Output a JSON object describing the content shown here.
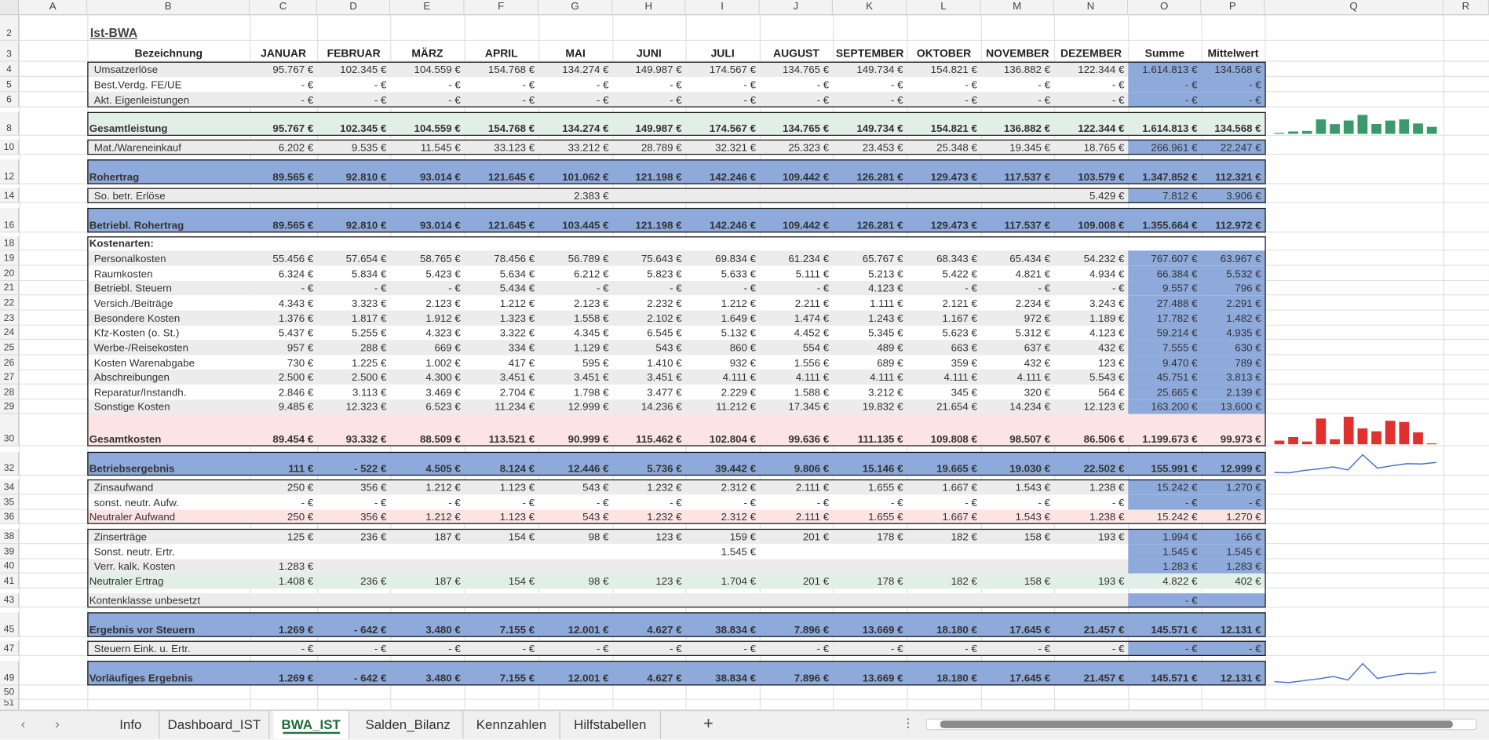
{
  "sheet": {
    "columns": [
      "A",
      "B",
      "C",
      "D",
      "E",
      "F",
      "G",
      "H",
      "I",
      "J",
      "K",
      "L",
      "M",
      "N",
      "O",
      "P",
      "Q",
      "R"
    ],
    "row_numbers": [
      "2",
      "3",
      "4",
      "5",
      "6",
      "8",
      "10",
      "12",
      "14",
      "16",
      "18",
      "19",
      "20",
      "21",
      "22",
      "23",
      "24",
      "25",
      "26",
      "27",
      "28",
      "29",
      "30",
      "32",
      "34",
      "35",
      "36",
      "38",
      "39",
      "40",
      "41",
      "43",
      "45",
      "47",
      "49",
      "50",
      "51"
    ],
    "title": "Ist-BWA",
    "header": [
      "Bezeichnung",
      "JANUAR",
      "FEBRUAR",
      "MÄRZ",
      "APRIL",
      "MAI",
      "JUNI",
      "JULI",
      "AUGUST",
      "SEPTEMBER",
      "OKTOBER",
      "NOVEMBER",
      "DEZEMBER",
      "Summe",
      "Mittelwert"
    ],
    "rows": [
      {
        "label": "Umsatzerlöse",
        "cells": [
          "95.767 €",
          "102.345 €",
          "104.559 €",
          "154.768 €",
          "134.274 €",
          "149.987 €",
          "174.567 €",
          "134.765 €",
          "149.734 €",
          "154.821 €",
          "136.882 €",
          "122.344 €",
          "1.614.813 €",
          "134.568 €"
        ]
      },
      {
        "label": "Best.Verdg. FE/UE",
        "cells": [
          "- €",
          "- €",
          "- €",
          "- €",
          "- €",
          "- €",
          "- €",
          "- €",
          "- €",
          "- €",
          "- €",
          "- €",
          "- €",
          "- €"
        ]
      },
      {
        "label": "Akt. Eigenleistungen",
        "cells": [
          "- €",
          "- €",
          "- €",
          "- €",
          "- €",
          "- €",
          "- €",
          "- €",
          "- €",
          "- €",
          "- €",
          "- €",
          "- €",
          "- €"
        ]
      },
      {
        "label": "Gesamtleistung",
        "cells": [
          "95.767 €",
          "102.345 €",
          "104.559 €",
          "154.768 €",
          "134.274 €",
          "149.987 €",
          "174.567 €",
          "134.765 €",
          "149.734 €",
          "154.821 €",
          "136.882 €",
          "122.344 €",
          "1.614.813 €",
          "134.568 €"
        ]
      },
      {
        "label": "Mat./Wareneinkauf",
        "cells": [
          "6.202 €",
          "9.535 €",
          "11.545 €",
          "33.123 €",
          "33.212 €",
          "28.789 €",
          "32.321 €",
          "25.323 €",
          "23.453 €",
          "25.348 €",
          "19.345 €",
          "18.765 €",
          "266.961 €",
          "22.247 €"
        ]
      },
      {
        "label": "Rohertrag",
        "cells": [
          "89.565 €",
          "92.810 €",
          "93.014 €",
          "121.645 €",
          "101.062 €",
          "121.198 €",
          "142.246 €",
          "109.442 €",
          "126.281 €",
          "129.473 €",
          "117.537 €",
          "103.579 €",
          "1.347.852 €",
          "112.321 €"
        ]
      },
      {
        "label": "So. betr. Erlöse",
        "cells": [
          null,
          null,
          null,
          null,
          "2.383 €",
          null,
          null,
          null,
          null,
          null,
          null,
          "5.429 €",
          "7.812 €",
          "3.906 €"
        ]
      },
      {
        "label": "Betriebl. Rohertrag",
        "cells": [
          "89.565 €",
          "92.810 €",
          "93.014 €",
          "121.645 €",
          "103.445 €",
          "121.198 €",
          "142.246 €",
          "109.442 €",
          "126.281 €",
          "129.473 €",
          "117.537 €",
          "109.008 €",
          "1.355.664 €",
          "112.972 €"
        ]
      },
      {
        "label": "Kostenarten:",
        "cells": [
          null,
          null,
          null,
          null,
          null,
          null,
          null,
          null,
          null,
          null,
          null,
          null,
          null,
          null
        ]
      },
      {
        "label": "Personalkosten",
        "cells": [
          "55.456 €",
          "57.654 €",
          "58.765 €",
          "78.456 €",
          "56.789 €",
          "75.643 €",
          "69.834 €",
          "61.234 €",
          "65.767 €",
          "68.343 €",
          "65.434 €",
          "54.232 €",
          "767.607 €",
          "63.967 €"
        ]
      },
      {
        "label": "Raumkosten",
        "cells": [
          "6.324 €",
          "5.834 €",
          "5.423 €",
          "5.634 €",
          "6.212 €",
          "5.823 €",
          "5.633 €",
          "5.111 €",
          "5.213 €",
          "5.422 €",
          "4.821 €",
          "4.934 €",
          "66.384 €",
          "5.532 €"
        ]
      },
      {
        "label": "Betriebl. Steuern",
        "cells": [
          "- €",
          "- €",
          "- €",
          "5.434 €",
          "- €",
          "- €",
          "- €",
          "- €",
          "4.123 €",
          "- €",
          "- €",
          "- €",
          "9.557 €",
          "796 €"
        ]
      },
      {
        "label": "Versich./Beiträge",
        "cells": [
          "4.343 €",
          "3.323 €",
          "2.123 €",
          "1.212 €",
          "2.123 €",
          "2.232 €",
          "1.212 €",
          "2.211 €",
          "1.111 €",
          "2.121 €",
          "2.234 €",
          "3.243 €",
          "27.488 €",
          "2.291 €"
        ]
      },
      {
        "label": "Besondere Kosten",
        "cells": [
          "1.376 €",
          "1.817 €",
          "1.912 €",
          "1.323 €",
          "1.558 €",
          "2.102 €",
          "1.649 €",
          "1.474 €",
          "1.243 €",
          "1.167 €",
          "972 €",
          "1.189 €",
          "17.782 €",
          "1.482 €"
        ]
      },
      {
        "label": "Kfz-Kosten (o. St.)",
        "cells": [
          "5.437 €",
          "5.255 €",
          "4.323 €",
          "3.322 €",
          "4.345 €",
          "6.545 €",
          "5.132 €",
          "4.452 €",
          "5.345 €",
          "5.623 €",
          "5.312 €",
          "4.123 €",
          "59.214 €",
          "4.935 €"
        ]
      },
      {
        "label": "Werbe-/Reisekosten",
        "cells": [
          "957 €",
          "288 €",
          "669 €",
          "334 €",
          "1.129 €",
          "543 €",
          "860 €",
          "554 €",
          "489 €",
          "663 €",
          "637 €",
          "432 €",
          "7.555 €",
          "630 €"
        ]
      },
      {
        "label": "Kosten Warenabgabe",
        "cells": [
          "730 €",
          "1.225 €",
          "1.002 €",
          "417 €",
          "595 €",
          "1.410 €",
          "932 €",
          "1.556 €",
          "689 €",
          "359 €",
          "432 €",
          "123 €",
          "9.470 €",
          "789 €"
        ]
      },
      {
        "label": "Abschreibungen",
        "cells": [
          "2.500 €",
          "2.500 €",
          "4.300 €",
          "3.451 €",
          "3.451 €",
          "3.451 €",
          "4.111 €",
          "4.111 €",
          "4.111 €",
          "4.111 €",
          "4.111 €",
          "5.543 €",
          "45.751 €",
          "3.813 €"
        ]
      },
      {
        "label": "Reparatur/Instandh.",
        "cells": [
          "2.846 €",
          "3.113 €",
          "3.469 €",
          "2.704 €",
          "1.798 €",
          "3.477 €",
          "2.229 €",
          "1.588 €",
          "3.212 €",
          "345 €",
          "320 €",
          "564 €",
          "25.665 €",
          "2.139 €"
        ]
      },
      {
        "label": "Sonstige Kosten",
        "cells": [
          "9.485 €",
          "12.323 €",
          "6.523 €",
          "11.234 €",
          "12.999 €",
          "14.236 €",
          "11.212 €",
          "17.345 €",
          "19.832 €",
          "21.654 €",
          "14.234 €",
          "12.123 €",
          "163.200 €",
          "13.600 €"
        ]
      },
      {
        "label": "Gesamtkosten",
        "cells": [
          "89.454 €",
          "93.332 €",
          "88.509 €",
          "113.521 €",
          "90.999 €",
          "115.462 €",
          "102.804 €",
          "99.636 €",
          "111.135 €",
          "109.808 €",
          "98.507 €",
          "86.506 €",
          "1.199.673 €",
          "99.973 €"
        ]
      },
      {
        "label": "Betriebsergebnis",
        "cells": [
          "111 €",
          "- 522 €",
          "4.505 €",
          "8.124 €",
          "12.446 €",
          "5.736 €",
          "39.442 €",
          "9.806 €",
          "15.146 €",
          "19.665 €",
          "19.030 €",
          "22.502 €",
          "155.991 €",
          "12.999 €"
        ]
      },
      {
        "label": "Zinsaufwand",
        "cells": [
          "250 €",
          "356 €",
          "1.212 €",
          "1.123 €",
          "543 €",
          "1.232 €",
          "2.312 €",
          "2.111 €",
          "1.655 €",
          "1.667 €",
          "1.543 €",
          "1.238 €",
          "15.242 €",
          "1.270 €"
        ]
      },
      {
        "label": "sonst. neutr. Aufw.",
        "cells": [
          "- €",
          "- €",
          "- €",
          "- €",
          "- €",
          "- €",
          "- €",
          "- €",
          "- €",
          "- €",
          "- €",
          "- €",
          "- €",
          "- €"
        ]
      },
      {
        "label": "Neutraler Aufwand",
        "cells": [
          "250 €",
          "356 €",
          "1.212 €",
          "1.123 €",
          "543 €",
          "1.232 €",
          "2.312 €",
          "2.111 €",
          "1.655 €",
          "1.667 €",
          "1.543 €",
          "1.238 €",
          "15.242 €",
          "1.270 €"
        ]
      },
      {
        "label": "Zinserträge",
        "cells": [
          "125 €",
          "236 €",
          "187 €",
          "154 €",
          "98 €",
          "123 €",
          "159 €",
          "201 €",
          "178 €",
          "182 €",
          "158 €",
          "193 €",
          "1.994 €",
          "166 €"
        ]
      },
      {
        "label": "Sonst. neutr. Ertr.",
        "cells": [
          null,
          null,
          null,
          null,
          null,
          null,
          "1.545 €",
          null,
          null,
          null,
          null,
          null,
          "1.545 €",
          "1.545 €"
        ]
      },
      {
        "label": "Verr. kalk. Kosten",
        "cells": [
          "1.283 €",
          null,
          null,
          null,
          null,
          null,
          null,
          null,
          null,
          null,
          null,
          null,
          "1.283 €",
          "1.283 €"
        ]
      },
      {
        "label": "Neutraler Ertrag",
        "cells": [
          "1.408 €",
          "236 €",
          "187 €",
          "154 €",
          "98 €",
          "123 €",
          "1.704 €",
          "201 €",
          "178 €",
          "182 €",
          "158 €",
          "193 €",
          "4.822 €",
          "402 €"
        ]
      },
      {
        "label": "Kontenklasse unbesetzt",
        "cells": [
          null,
          null,
          null,
          null,
          null,
          null,
          null,
          null,
          null,
          null,
          null,
          null,
          "- €",
          null
        ]
      },
      {
        "label": "Ergebnis vor Steuern",
        "cells": [
          "1.269 €",
          "- 642 €",
          "3.480 €",
          "7.155 €",
          "12.001 €",
          "4.627 €",
          "38.834 €",
          "7.896 €",
          "13.669 €",
          "18.180 €",
          "17.645 €",
          "21.457 €",
          "145.571 €",
          "12.131 €"
        ]
      },
      {
        "label": "Steuern Eink. u. Ertr.",
        "cells": [
          "- €",
          "- €",
          "- €",
          "- €",
          "- €",
          "- €",
          "- €",
          "- €",
          "- €",
          "- €",
          "- €",
          "- €",
          "- €",
          "- €"
        ]
      },
      {
        "label": "Vorläufiges Ergebnis",
        "cells": [
          "1.269 €",
          "- 642 €",
          "3.480 €",
          "7.155 €",
          "12.001 €",
          "4.627 €",
          "38.834 €",
          "7.896 €",
          "13.669 €",
          "18.180 €",
          "17.645 €",
          "21.457 €",
          "145.571 €",
          "12.131 €"
        ]
      }
    ],
    "tabs": [
      "Info",
      "Dashboard_IST",
      "BWA_IST",
      "Salden_Bilanz",
      "Kennzahlen",
      "Hilfstabellen"
    ]
  }
}
